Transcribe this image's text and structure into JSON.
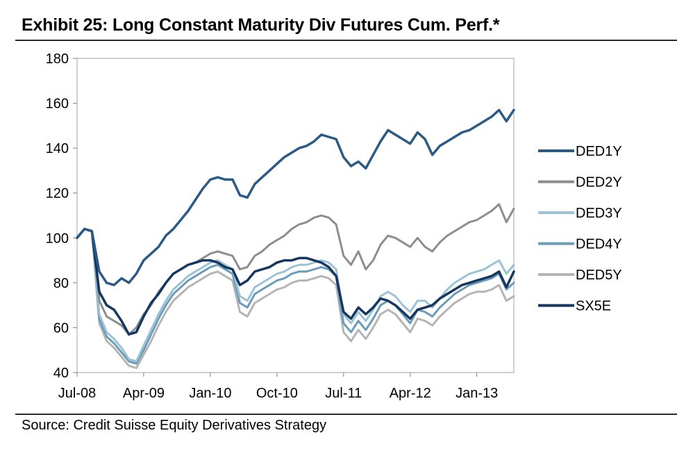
{
  "header": {
    "title": "Exhibit 25: Long Constant Maturity Div Futures Cum. Perf.*"
  },
  "footer": {
    "source": "Source: Credit Suisse Equity Derivatives Strategy"
  },
  "chart_data": {
    "type": "line",
    "title": "Exhibit 25: Long Constant Maturity Div Futures Cum. Perf.*",
    "xlabel": "",
    "ylabel": "",
    "ylim": [
      40,
      180
    ],
    "yticks": [
      40,
      60,
      80,
      100,
      120,
      140,
      160,
      180
    ],
    "xlim": [
      0,
      59
    ],
    "x_tick_labels": [
      {
        "label": "Jul-08",
        "x": 0
      },
      {
        "label": "Apr-09",
        "x": 9
      },
      {
        "label": "Jan-10",
        "x": 18
      },
      {
        "label": "Oct-10",
        "x": 27
      },
      {
        "label": "Jul-11",
        "x": 36
      },
      {
        "label": "Apr-12",
        "x": 45
      },
      {
        "label": "Jan-13",
        "x": 54
      }
    ],
    "grid": false,
    "legend_position": "right",
    "x": [
      0,
      1,
      2,
      3,
      4,
      5,
      6,
      7,
      8,
      9,
      10,
      11,
      12,
      13,
      14,
      15,
      16,
      17,
      18,
      19,
      20,
      21,
      22,
      23,
      24,
      25,
      26,
      27,
      28,
      29,
      30,
      31,
      32,
      33,
      34,
      35,
      36,
      37,
      38,
      39,
      40,
      41,
      42,
      43,
      44,
      45,
      46,
      47,
      48,
      49,
      50,
      51,
      52,
      53,
      54,
      55,
      56,
      57,
      58,
      59
    ],
    "series": [
      {
        "name": "DED1Y",
        "color": "#2b5a86",
        "values": [
          100,
          104,
          103,
          85,
          80,
          79,
          82,
          80,
          84,
          90,
          93,
          96,
          101,
          104,
          108,
          112,
          117,
          122,
          126,
          127,
          126,
          126,
          119,
          118,
          124,
          127,
          130,
          133,
          136,
          138,
          140,
          141,
          143,
          146,
          145,
          144,
          136,
          132,
          134,
          131,
          137,
          143,
          148,
          146,
          144,
          142,
          147,
          144,
          137,
          141,
          143,
          145,
          147,
          148,
          150,
          152,
          154,
          157,
          152,
          157
        ]
      },
      {
        "name": "DED2Y",
        "color": "#8d8d8d",
        "values": [
          100,
          104,
          103,
          72,
          65,
          63,
          61,
          57,
          60,
          66,
          70,
          76,
          80,
          84,
          86,
          88,
          89,
          91,
          93,
          94,
          93,
          92,
          86,
          87,
          92,
          94,
          97,
          99,
          101,
          104,
          106,
          107,
          109,
          110,
          109,
          106,
          92,
          88,
          94,
          86,
          90,
          97,
          101,
          100,
          98,
          96,
          100,
          96,
          94,
          98,
          101,
          103,
          105,
          107,
          108,
          110,
          112,
          115,
          107,
          113
        ]
      },
      {
        "name": "DED3Y",
        "color": "#9cc3d5",
        "values": [
          100,
          104,
          103,
          66,
          58,
          55,
          51,
          46,
          45,
          52,
          59,
          66,
          72,
          77,
          80,
          83,
          85,
          87,
          89,
          90,
          88,
          86,
          74,
          72,
          78,
          80,
          82,
          84,
          85,
          87,
          88,
          88,
          89,
          90,
          89,
          86,
          66,
          62,
          67,
          63,
          68,
          74,
          76,
          74,
          70,
          67,
          72,
          72,
          69,
          73,
          77,
          80,
          82,
          84,
          85,
          86,
          88,
          90,
          84,
          88
        ]
      },
      {
        "name": "DED4Y",
        "color": "#6a9cb9",
        "values": [
          100,
          104,
          103,
          64,
          56,
          53,
          49,
          45,
          44,
          50,
          57,
          64,
          70,
          75,
          78,
          81,
          83,
          85,
          87,
          88,
          86,
          84,
          71,
          69,
          75,
          77,
          79,
          81,
          82,
          84,
          85,
          85,
          86,
          87,
          86,
          83,
          62,
          58,
          63,
          59,
          64,
          70,
          72,
          70,
          66,
          62,
          68,
          67,
          65,
          69,
          72,
          75,
          77,
          79,
          80,
          81,
          82,
          84,
          77,
          80
        ]
      },
      {
        "name": "DED5Y",
        "color": "#b4b4b4",
        "values": [
          100,
          104,
          103,
          62,
          54,
          51,
          47,
          43,
          42,
          48,
          54,
          61,
          67,
          72,
          75,
          78,
          80,
          82,
          84,
          85,
          83,
          81,
          67,
          65,
          71,
          73,
          75,
          77,
          78,
          80,
          81,
          81,
          82,
          83,
          82,
          79,
          58,
          54,
          59,
          55,
          60,
          66,
          68,
          66,
          62,
          58,
          64,
          63,
          61,
          65,
          68,
          71,
          73,
          75,
          76,
          76,
          77,
          79,
          72,
          74
        ]
      },
      {
        "name": "SX5E",
        "color": "#143661",
        "values": [
          100,
          104,
          103,
          76,
          70,
          68,
          63,
          57,
          58,
          65,
          71,
          75,
          80,
          84,
          86,
          88,
          89,
          90,
          90,
          89,
          87,
          86,
          79,
          81,
          85,
          86,
          87,
          89,
          90,
          90,
          91,
          91,
          90,
          89,
          87,
          83,
          67,
          64,
          69,
          66,
          69,
          73,
          72,
          70,
          67,
          64,
          68,
          69,
          70,
          73,
          75,
          77,
          79,
          80,
          81,
          82,
          83,
          85,
          78,
          85
        ]
      }
    ]
  }
}
